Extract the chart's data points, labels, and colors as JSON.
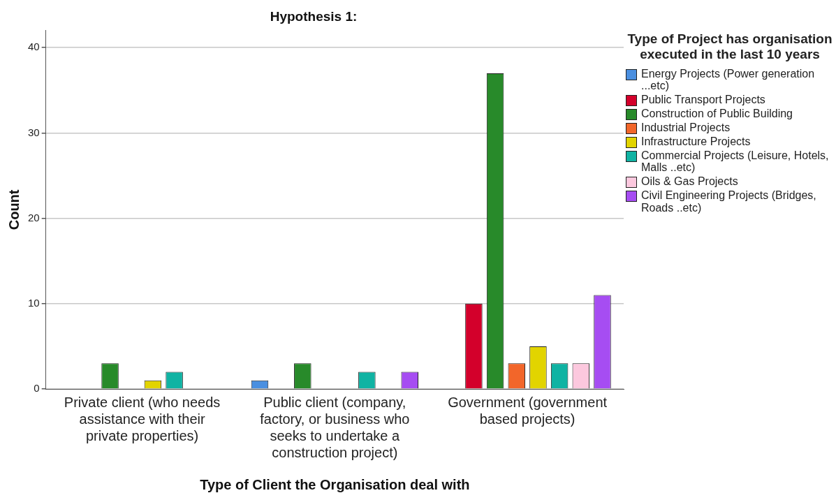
{
  "chart_data": {
    "type": "bar",
    "title": "Hypothesis 1:",
    "xlabel": "Type of Client the Organisation deal with",
    "ylabel": "Count",
    "legend_title": "Type of Project has organisation executed in the last 10 years",
    "categories": [
      "Private client (who needs assistance with their private properties)",
      "Public client (company, factory, or business who seeks to undertake a construction project)",
      "Government (government based projects)"
    ],
    "series": [
      {
        "name": "Energy Projects (Power generation ...etc)",
        "color": "#4a8fe0",
        "values": [
          0,
          1,
          0
        ]
      },
      {
        "name": "Public Transport Projects",
        "color": "#d3002b",
        "values": [
          0,
          0,
          10
        ]
      },
      {
        "name": "Construction of Public Building",
        "color": "#288a2a",
        "values": [
          3,
          3,
          37
        ]
      },
      {
        "name": "Industrial Projects",
        "color": "#f2662a",
        "values": [
          0,
          0,
          3
        ]
      },
      {
        "name": "Infrastructure Projects",
        "color": "#e2d400",
        "values": [
          1,
          0,
          5
        ]
      },
      {
        "name": "Commercial Projects (Leisure, Hotels, Malls ..etc)",
        "color": "#10b3a3",
        "values": [
          2,
          2,
          3
        ]
      },
      {
        "name": "Oils & Gas Projects",
        "color": "#fcc8de",
        "values": [
          0,
          0,
          3
        ]
      },
      {
        "name": "Civil Engineering Projects (Bridges, Roads ..etc)",
        "color": "#a64df2",
        "values": [
          0,
          2,
          11
        ]
      }
    ],
    "ylim": [
      0,
      42
    ],
    "yticks": [
      0,
      10,
      20,
      30,
      40
    ],
    "grid": "y",
    "legend": "right"
  }
}
